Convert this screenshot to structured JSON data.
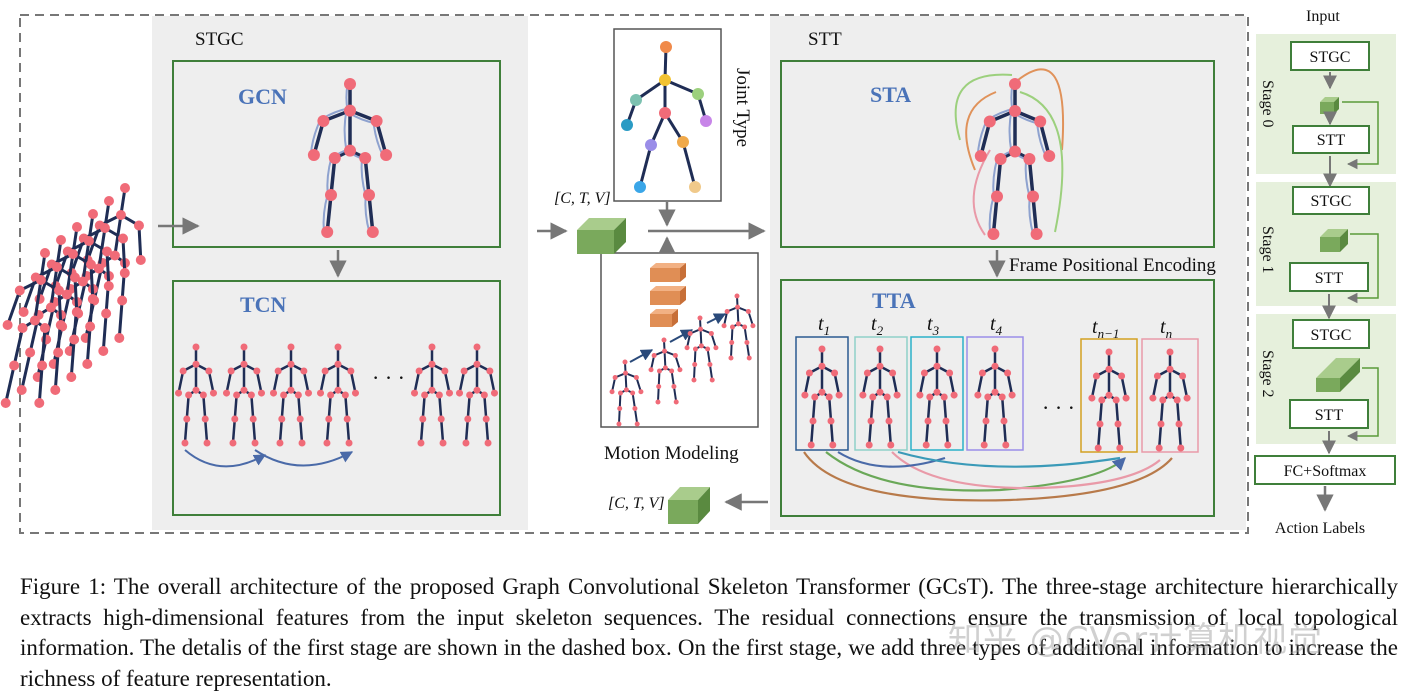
{
  "figure": {
    "stgc_label": "STGC",
    "gcn_label": "GCN",
    "tcn_label": "TCN",
    "tcn_ellipsis": "· · ·",
    "tensor_label_in": "[C, T, V]",
    "tensor_label_out": "[C, T, V]",
    "joint_type_label": "Joint Type",
    "motion_modeling_label": "Motion Modeling",
    "stt_label": "STT",
    "sta_label": "STA",
    "frame_pe_label": "Frame Positional Encoding",
    "tta_label": "TTA",
    "tta_ellipsis": "· · ·",
    "time_labels": [
      {
        "base": "t",
        "sub": "1"
      },
      {
        "base": "t",
        "sub": "2"
      },
      {
        "base": "t",
        "sub": "3"
      },
      {
        "base": "t",
        "sub": "4"
      },
      {
        "base": "t",
        "sub": "n−1"
      },
      {
        "base": "t",
        "sub": "n"
      }
    ]
  },
  "pipeline": {
    "input_label": "Input",
    "stages": [
      {
        "name": "Stage 0",
        "stgc": "STGC",
        "stt": "STT"
      },
      {
        "name": "Stage 1",
        "stgc": "STGC",
        "stt": "STT"
      },
      {
        "name": "Stage 2",
        "stgc": "STGC",
        "stt": "STT"
      }
    ],
    "fc_label": "FC+Softmax",
    "output_label": "Action Labels"
  },
  "caption": {
    "text": "Figure 1: The overall architecture of the proposed Graph Convolutional Skeleton Transformer (GCsT). The three-stage architecture hierarchically extracts high-dimensional features from the input skeleton sequences. The residual connections ensure the transmission of local topological information. The detalis of the first stage are shown in the dashed box. On the first stage, we add three types of additional information to increase the richness of feature representation."
  },
  "watermark": "知乎 @CVer计算机视觉",
  "colors": {
    "box_border": "#3f7f3a",
    "panel_bg": "#eeeeee",
    "stage_bg": "#e6f0dc",
    "joint": "#f06b78",
    "bone": "#1f2d55",
    "arrow": "#7b8fbf",
    "tensor": "#7aa95c",
    "feature": "#e08e55",
    "title_blue": "#4a73b8"
  }
}
